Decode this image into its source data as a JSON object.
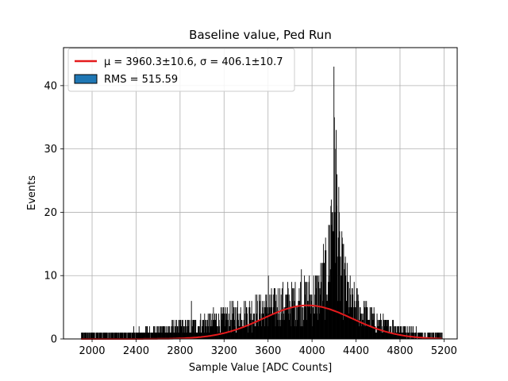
{
  "chart_data": {
    "type": "bar",
    "title": "Baseline value, Ped Run",
    "xlabel": "Sample Value [ADC Counts]",
    "ylabel": "Events",
    "xlim": [
      1740,
      5320
    ],
    "ylim": [
      0,
      46
    ],
    "xticks": [
      2000,
      2400,
      2800,
      3200,
      3600,
      4000,
      4400,
      4800,
      5200
    ],
    "yticks": [
      0,
      10,
      20,
      30,
      40
    ],
    "grid": true,
    "legend_position": "top-left",
    "legend": [
      {
        "label": "μ = 3960.3±10.6, σ = 406.1±10.7",
        "kind": "line",
        "color": "#e41a1c"
      },
      {
        "label": "RMS = 515.59",
        "kind": "patch",
        "color": "#1f77b4"
      }
    ],
    "fit": {
      "mu": 3960.3,
      "sigma": 406.1,
      "amplitude": 5.3,
      "x_range": [
        1900,
        5180
      ],
      "color": "#e41a1c"
    },
    "histogram": {
      "x_range": [
        1900,
        5180
      ],
      "bar_color": "#000000",
      "approx_envelope": [
        {
          "x": 1900,
          "y": 1
        },
        {
          "x": 2300,
          "y": 1
        },
        {
          "x": 2700,
          "y": 2
        },
        {
          "x": 3000,
          "y": 3
        },
        {
          "x": 3200,
          "y": 4
        },
        {
          "x": 3400,
          "y": 5
        },
        {
          "x": 3600,
          "y": 6
        },
        {
          "x": 3800,
          "y": 7
        },
        {
          "x": 4000,
          "y": 8
        },
        {
          "x": 4100,
          "y": 10
        },
        {
          "x": 4150,
          "y": 15
        },
        {
          "x": 4200,
          "y": 35
        },
        {
          "x": 4250,
          "y": 14
        },
        {
          "x": 4350,
          "y": 7
        },
        {
          "x": 4600,
          "y": 3
        },
        {
          "x": 5000,
          "y": 1
        },
        {
          "x": 5180,
          "y": 1
        }
      ],
      "notable_peaks": [
        {
          "x": 2900,
          "y": 6
        },
        {
          "x": 3600,
          "y": 10
        },
        {
          "x": 3900,
          "y": 11
        },
        {
          "x": 4010,
          "y": 14
        },
        {
          "x": 4100,
          "y": 15
        },
        {
          "x": 4150,
          "y": 20
        },
        {
          "x": 4190,
          "y": 27
        },
        {
          "x": 4200,
          "y": 35
        },
        {
          "x": 4230,
          "y": 21
        }
      ]
    }
  }
}
